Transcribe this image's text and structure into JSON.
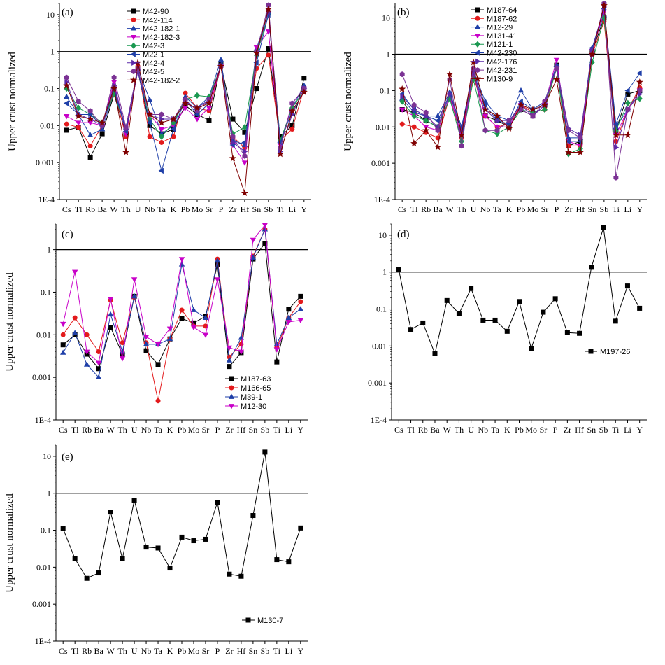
{
  "chart_data": [
    {
      "panel": "(a)",
      "type": "line",
      "ylabel": "Upper crust normalized",
      "yscale": "log",
      "ylim": [
        0.0001,
        20
      ],
      "yticks": [
        "1E-4",
        "0.001",
        "0.01",
        "0.1",
        "1",
        "10"
      ],
      "reference_line": 1,
      "legend_position": "top-center",
      "categories": [
        "Cs",
        "Tl",
        "Rb",
        "Ba",
        "W",
        "Th",
        "U",
        "Nb",
        "Ta",
        "K",
        "Pb",
        "Mo",
        "Sr",
        "P",
        "Zr",
        "Hf",
        "Sn",
        "Sb",
        "Ti",
        "Li",
        "Y"
      ],
      "series": [
        {
          "name": "M42-90",
          "marker": "square",
          "color": "#000000",
          "values": [
            0.0075,
            0.009,
            0.0014,
            0.006,
            0.07,
            0.006,
            0.3,
            0.01,
            0.006,
            0.008,
            0.035,
            0.02,
            0.014,
            0.45,
            0.015,
            0.0065,
            0.1,
            1.2,
            0.005,
            0.01,
            0.19
          ]
        },
        {
          "name": "M42-114",
          "marker": "circle",
          "color": "#e31a1c",
          "values": [
            0.011,
            0.009,
            0.0028,
            0.01,
            0.09,
            0.005,
            0.4,
            0.005,
            0.0035,
            0.005,
            0.075,
            0.03,
            0.025,
            0.4,
            0.005,
            0.0025,
            0.35,
            0.8,
            0.004,
            0.008,
            0.1
          ]
        },
        {
          "name": "M42-182-1",
          "marker": "triangle-up",
          "color": "#1f3fa8",
          "values": [
            0.06,
            0.02,
            0.0055,
            0.008,
            0.08,
            0.009,
            0.35,
            0.05,
            0.006,
            0.01,
            0.06,
            0.03,
            0.06,
            0.6,
            0.004,
            0.003,
            1.2,
            12,
            0.004,
            0.03,
            0.12
          ]
        },
        {
          "name": "M42-182-3",
          "marker": "triangle-down",
          "color": "#c800c8",
          "values": [
            0.018,
            0.012,
            0.012,
            0.01,
            0.15,
            0.006,
            0.3,
            0.02,
            0.008,
            0.01,
            0.03,
            0.015,
            0.03,
            0.4,
            0.003,
            0.001,
            1.3,
            3.5,
            0.003,
            0.04,
            0.1
          ]
        },
        {
          "name": "M42-3",
          "marker": "diamond",
          "color": "#1a9850",
          "values": [
            0.1,
            0.03,
            0.02,
            0.012,
            0.07,
            0.009,
            0.3,
            0.015,
            0.005,
            0.012,
            0.05,
            0.065,
            0.06,
            0.4,
            0.006,
            0.009,
            0.8,
            10,
            0.004,
            0.03,
            0.09
          ]
        },
        {
          "name": "M22-1",
          "marker": "triangle-left",
          "color": "#1f3fa8",
          "values": [
            0.04,
            0.02,
            0.02,
            0.01,
            0.1,
            0.007,
            0.3,
            0.012,
            0.0006,
            0.008,
            0.05,
            0.02,
            0.04,
            0.45,
            0.003,
            0.0035,
            0.5,
            10,
            0.0035,
            0.025,
            0.08
          ]
        },
        {
          "name": "M42-4",
          "marker": "triangle-right",
          "color": "#5b2aa8",
          "values": [
            0.15,
            0.02,
            0.015,
            0.01,
            0.12,
            0.008,
            0.3,
            0.02,
            0.015,
            0.015,
            0.04,
            0.03,
            0.05,
            0.4,
            0.0035,
            0.002,
            0.9,
            12,
            0.002,
            0.02,
            0.1
          ]
        },
        {
          "name": "M42-5",
          "marker": "hexagon",
          "color": "#7b3294",
          "values": [
            0.2,
            0.045,
            0.025,
            0.01,
            0.2,
            0.009,
            0.35,
            0.02,
            0.02,
            0.015,
            0.05,
            0.025,
            0.05,
            0.4,
            0.005,
            0.0015,
            1.0,
            18,
            0.0025,
            0.04,
            0.1
          ]
        },
        {
          "name": "M42-182-2",
          "marker": "star",
          "color": "#7f0000",
          "values": [
            0.12,
            0.018,
            0.015,
            0.012,
            0.1,
            0.0019,
            0.5,
            0.02,
            0.012,
            0.015,
            0.04,
            0.03,
            0.04,
            0.4,
            0.0013,
            0.00015,
            0.9,
            14,
            0.0017,
            0.025,
            0.08
          ]
        }
      ]
    },
    {
      "panel": "(b)",
      "type": "line",
      "ylabel": "Upper crust normalized",
      "yscale": "log",
      "ylim": [
        0.0001,
        25
      ],
      "yticks": [
        "1E-4",
        "0.001",
        "0.01",
        "0.1",
        "1",
        "10"
      ],
      "reference_line": 1,
      "legend_position": "top-left",
      "categories": [
        "Cs",
        "Tl",
        "Rb",
        "Ba",
        "W",
        "Th",
        "U",
        "Nb",
        "Ta",
        "K",
        "Pb",
        "Mo",
        "Sr",
        "P",
        "Zr",
        "Hf",
        "Sn",
        "Sb",
        "Ti",
        "Li",
        "Y"
      ],
      "series": [
        {
          "name": "M187-64",
          "marker": "square",
          "color": "#000000",
          "values": [
            0.03,
            0.025,
            0.015,
            0.01,
            0.06,
            0.008,
            0.3,
            0.02,
            0.015,
            0.01,
            0.03,
            0.02,
            0.04,
            0.5,
            0.003,
            0.004,
            1.2,
            10,
            0.008,
            0.08,
            0.1
          ]
        },
        {
          "name": "M187-62",
          "marker": "circle",
          "color": "#e31a1c",
          "values": [
            0.012,
            0.01,
            0.007,
            0.005,
            0.07,
            0.005,
            0.25,
            0.02,
            0.01,
            0.012,
            0.04,
            0.025,
            0.03,
            0.45,
            0.003,
            0.003,
            1.0,
            8,
            0.004,
            0.03,
            0.12
          ]
        },
        {
          "name": "M12-29",
          "marker": "triangle-up",
          "color": "#1f3fa8",
          "values": [
            0.06,
            0.025,
            0.02,
            0.02,
            0.09,
            0.01,
            0.35,
            0.05,
            0.02,
            0.015,
            0.1,
            0.03,
            0.05,
            0.5,
            0.005,
            0.005,
            1.5,
            12,
            0.01,
            0.03,
            0.1
          ]
        },
        {
          "name": "M131-41",
          "marker": "triangle-down",
          "color": "#c800c8",
          "values": [
            0.03,
            0.02,
            0.01,
            0.008,
            0.07,
            0.006,
            0.3,
            0.02,
            0.01,
            0.01,
            0.04,
            0.02,
            0.04,
            0.7,
            0.004,
            0.003,
            1.2,
            15,
            0.006,
            0.03,
            0.1
          ]
        },
        {
          "name": "M121-1",
          "marker": "diamond",
          "color": "#1a9850",
          "values": [
            0.05,
            0.02,
            0.015,
            0.01,
            0.06,
            0.004,
            0.2,
            0.008,
            0.0065,
            0.01,
            0.03,
            0.025,
            0.03,
            0.4,
            0.0018,
            0.0025,
            0.6,
            10,
            0.008,
            0.045,
            0.06
          ]
        },
        {
          "name": "M42-230",
          "marker": "triangle-left",
          "color": "#1f3fa8",
          "values": [
            0.08,
            0.03,
            0.02,
            0.015,
            0.08,
            0.01,
            0.3,
            0.04,
            0.015,
            0.012,
            0.05,
            0.03,
            0.04,
            0.45,
            0.004,
            0.004,
            1.5,
            18,
            0.012,
            0.1,
            0.3
          ]
        },
        {
          "name": "M42-176",
          "marker": "triangle-right",
          "color": "#5b2aa8",
          "values": [
            0.07,
            0.03,
            0.02,
            0.01,
            0.08,
            0.008,
            0.3,
            0.03,
            0.015,
            0.015,
            0.04,
            0.02,
            0.04,
            0.45,
            0.009,
            0.006,
            1.3,
            20,
            0.0027,
            0.03,
            0.08
          ]
        },
        {
          "name": "M42-231",
          "marker": "hexagon",
          "color": "#7b3294",
          "values": [
            0.28,
            0.04,
            0.025,
            0.008,
            0.2,
            0.003,
            0.4,
            0.008,
            0.008,
            0.015,
            0.03,
            0.02,
            0.05,
            0.4,
            0.008,
            0.005,
            1.0,
            25,
            0.0004,
            0.03,
            0.1
          ]
        },
        {
          "name": "M130-9",
          "marker": "star",
          "color": "#7f0000",
          "values": [
            0.11,
            0.0035,
            0.008,
            0.0028,
            0.28,
            0.006,
            0.6,
            0.03,
            0.02,
            0.009,
            0.04,
            0.03,
            0.04,
            0.2,
            0.002,
            0.002,
            1.0,
            22,
            0.006,
            0.006,
            0.17
          ]
        }
      ]
    },
    {
      "panel": "(c)",
      "type": "line",
      "ylabel": "Upper crust normalized",
      "yscale": "log",
      "ylim": [
        0.0001,
        4
      ],
      "yticks": [
        "1E-4",
        "0.001",
        "0.01",
        "0.1",
        "1"
      ],
      "reference_line": 1,
      "legend_position": "bottom-right",
      "categories": [
        "Cs",
        "Tl",
        "Rb",
        "Ba",
        "W",
        "Th",
        "U",
        "Nb",
        "Ta",
        "K",
        "Pb",
        "Mo",
        "Sr",
        "P",
        "Zr",
        "Hf",
        "Sn",
        "Sb",
        "Ti",
        "Li",
        "Y"
      ],
      "series": [
        {
          "name": "M187-63",
          "marker": "square",
          "color": "#000000",
          "values": [
            0.0058,
            0.01,
            0.0035,
            0.0016,
            0.015,
            0.0035,
            0.08,
            0.0042,
            0.002,
            0.008,
            0.024,
            0.019,
            0.027,
            0.45,
            0.0018,
            0.0038,
            0.6,
            1.4,
            0.0023,
            0.04,
            0.08
          ]
        },
        {
          "name": "M166-65",
          "marker": "circle",
          "color": "#e31a1c",
          "values": [
            0.01,
            0.025,
            0.01,
            0.004,
            0.065,
            0.0065,
            0.075,
            0.0065,
            0.00028,
            0.008,
            0.038,
            0.016,
            0.016,
            0.6,
            0.003,
            0.006,
            0.7,
            3.0,
            0.005,
            0.025,
            0.06
          ]
        },
        {
          "name": "M39-1",
          "marker": "triangle-up",
          "color": "#1f3fa8",
          "values": [
            0.0038,
            0.011,
            0.002,
            0.001,
            0.03,
            0.004,
            0.08,
            0.006,
            0.006,
            0.008,
            0.45,
            0.038,
            0.025,
            0.55,
            0.0025,
            0.0085,
            0.65,
            3.0,
            0.006,
            0.025,
            0.04
          ]
        },
        {
          "name": "M12-30",
          "marker": "triangle-down",
          "color": "#c800c8",
          "values": [
            0.018,
            0.3,
            0.004,
            0.0022,
            0.07,
            0.0028,
            0.2,
            0.009,
            0.006,
            0.014,
            0.6,
            0.015,
            0.01,
            0.2,
            0.005,
            0.004,
            1.7,
            3.8,
            0.0045,
            0.02,
            0.022
          ]
        }
      ]
    },
    {
      "panel": "(d)",
      "type": "line",
      "yscale": "log",
      "ylim": [
        0.0001,
        20
      ],
      "yticks": [
        "1E-4",
        "0.001",
        "0.01",
        "0.1",
        "1",
        "10"
      ],
      "reference_line": 1,
      "legend_position": "right",
      "categories": [
        "Cs",
        "Tl",
        "Rb",
        "Ba",
        "W",
        "Th",
        "U",
        "Nb",
        "Ta",
        "K",
        "Pb",
        "Mo",
        "Sr",
        "P",
        "Zr",
        "Hf",
        "Sn",
        "Sb",
        "Ti",
        "Li",
        "Y"
      ],
      "series": [
        {
          "name": "M197-26",
          "marker": "square",
          "color": "#000000",
          "values": [
            1.15,
            0.028,
            0.042,
            0.0062,
            0.17,
            0.075,
            0.36,
            0.05,
            0.05,
            0.025,
            0.16,
            0.0086,
            0.082,
            0.19,
            0.023,
            0.022,
            1.35,
            16,
            0.047,
            0.42,
            0.105
          ]
        }
      ]
    },
    {
      "panel": "(e)",
      "type": "line",
      "ylabel": "Upper crust normalized",
      "yscale": "log",
      "ylim": [
        0.0001,
        20
      ],
      "yticks": [
        "1E-4",
        "0.001",
        "0.01",
        "0.1",
        "1",
        "10"
      ],
      "reference_line": 1,
      "legend_position": "bottom-right",
      "categories": [
        "Cs",
        "Tl",
        "Rb",
        "Ba",
        "W",
        "Th",
        "U",
        "Nb",
        "Ta",
        "K",
        "Pb",
        "Mo",
        "Sr",
        "P",
        "Zr",
        "Hf",
        "Sn",
        "Sb",
        "Ti",
        "Li",
        "Y"
      ],
      "series": [
        {
          "name": "M130-7",
          "marker": "square",
          "color": "#000000",
          "values": [
            0.11,
            0.017,
            0.005,
            0.007,
            0.31,
            0.017,
            0.65,
            0.035,
            0.033,
            0.0095,
            0.065,
            0.052,
            0.057,
            0.57,
            0.0065,
            0.0057,
            0.25,
            13,
            0.016,
            0.014,
            0.115
          ]
        }
      ]
    }
  ]
}
